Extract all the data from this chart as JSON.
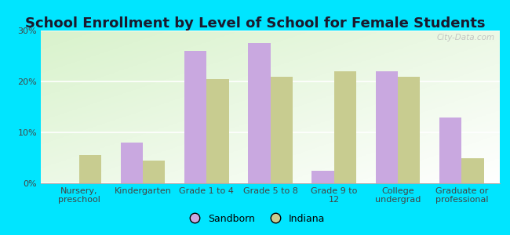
{
  "title": "School Enrollment by Level of School for Female Students",
  "categories": [
    "Nursery,\npreschool",
    "Kindergarten",
    "Grade 1 to 4",
    "Grade 5 to 8",
    "Grade 9 to\n12",
    "College\nundergrad",
    "Graduate or\nprofessional"
  ],
  "sandborn": [
    0,
    8.0,
    26.0,
    27.5,
    2.5,
    22.0,
    13.0
  ],
  "indiana": [
    5.5,
    4.5,
    20.5,
    21.0,
    22.0,
    21.0,
    5.0
  ],
  "sandborn_color": "#c9a8e0",
  "indiana_color": "#c8cc90",
  "bg_outer": "#00e5ff",
  "ylim": [
    0,
    30
  ],
  "yticks": [
    0,
    10,
    20,
    30
  ],
  "ytick_labels": [
    "0%",
    "10%",
    "20%",
    "30%"
  ],
  "legend_sandborn": "Sandborn",
  "legend_indiana": "Indiana",
  "watermark": "City-Data.com",
  "bar_width": 0.35,
  "title_fontsize": 13,
  "tick_fontsize": 8,
  "legend_fontsize": 9
}
